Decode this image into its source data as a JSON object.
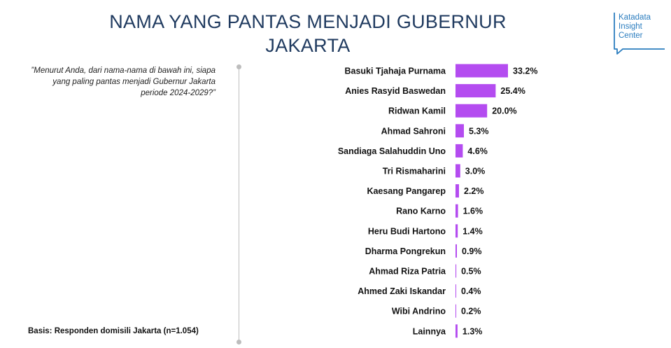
{
  "title": {
    "line1": "NAMA YANG PANTAS MENJADI GUBERNUR",
    "line2": "JAKARTA"
  },
  "logo": {
    "line1": "Katadata",
    "line2": "Insight",
    "line3": "Center",
    "color": "#2b7dbf"
  },
  "question": "”Menurut Anda, dari nama-nama di bawah ini, siapa yang paling pantas menjadi Gubernur Jakarta periode 2024-2029?”",
  "basis": "Basis: Responden domisili Jakarta (n=1.054)",
  "colors": {
    "title": "#1f3a5f",
    "bar": "#b44cf0"
  },
  "chart_data": {
    "type": "bar",
    "orientation": "horizontal",
    "title": "NAMA YANG PANTAS MENJADI GUBERNUR JAKARTA",
    "xlabel": "",
    "ylabel": "",
    "grid": false,
    "xlim": [
      0,
      33.2
    ],
    "categories": [
      "Basuki Tjahaja Purnama",
      "Anies Rasyid Baswedan",
      "Ridwan Kamil",
      "Ahmad Sahroni",
      "Sandiaga Salahuddin Uno",
      "Tri Rismaharini",
      "Kaesang Pangarep",
      "Rano Karno",
      "Heru Budi Hartono",
      "Dharma Pongrekun",
      "Ahmad Riza Patria",
      "Ahmed Zaki Iskandar",
      "Wibi Andrino",
      "Lainnya"
    ],
    "values": [
      33.2,
      25.4,
      20.0,
      5.3,
      4.6,
      3.0,
      2.2,
      1.6,
      1.4,
      0.9,
      0.5,
      0.4,
      0.2,
      1.3
    ],
    "value_labels": [
      "33.2%",
      "25.4%",
      "20.0%",
      "5.3%",
      "4.6%",
      "3.0%",
      "2.2%",
      "1.6%",
      "1.4%",
      "0.9%",
      "0.5%",
      "0.4%",
      "0.2%",
      "1.3%"
    ]
  }
}
